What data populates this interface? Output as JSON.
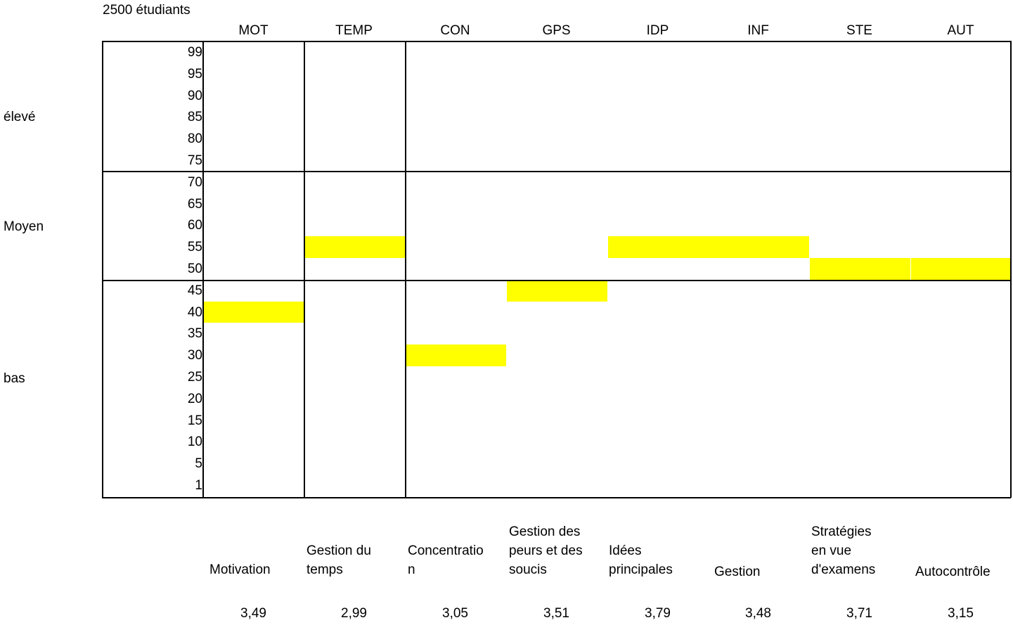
{
  "chart_data": {
    "type": "table",
    "title": "2500 étudiants",
    "bands": [
      "élevé",
      "Moyen",
      "bas"
    ],
    "y_ticks": [
      "99",
      "95",
      "90",
      "85",
      "80",
      "75",
      "70",
      "65",
      "60",
      "55",
      "50",
      "45",
      "40",
      "35",
      "30",
      "25",
      "20",
      "15",
      "10",
      "5",
      "1"
    ],
    "categories": [
      "MOT",
      "TEMP",
      "CON",
      "GPS",
      "IDP",
      "INF",
      "STE",
      "AUT"
    ],
    "category_names": [
      "Motivation",
      "Gestion du\ntemps",
      "Concentratio\nn",
      "Gestion des\npeurs et des\nsoucis",
      "Idées\nprincipales",
      "Gestion",
      "Stratégies\nen vue\nd'examens",
      "Autocontrôle"
    ],
    "values": [
      40,
      55,
      30,
      45,
      55,
      55,
      50,
      50
    ],
    "scores": [
      "3,49",
      "2,99",
      "3,05",
      "3,51",
      "3,79",
      "3,48",
      "3,71",
      "3,15"
    ],
    "highlight_color": "#ffff00"
  }
}
